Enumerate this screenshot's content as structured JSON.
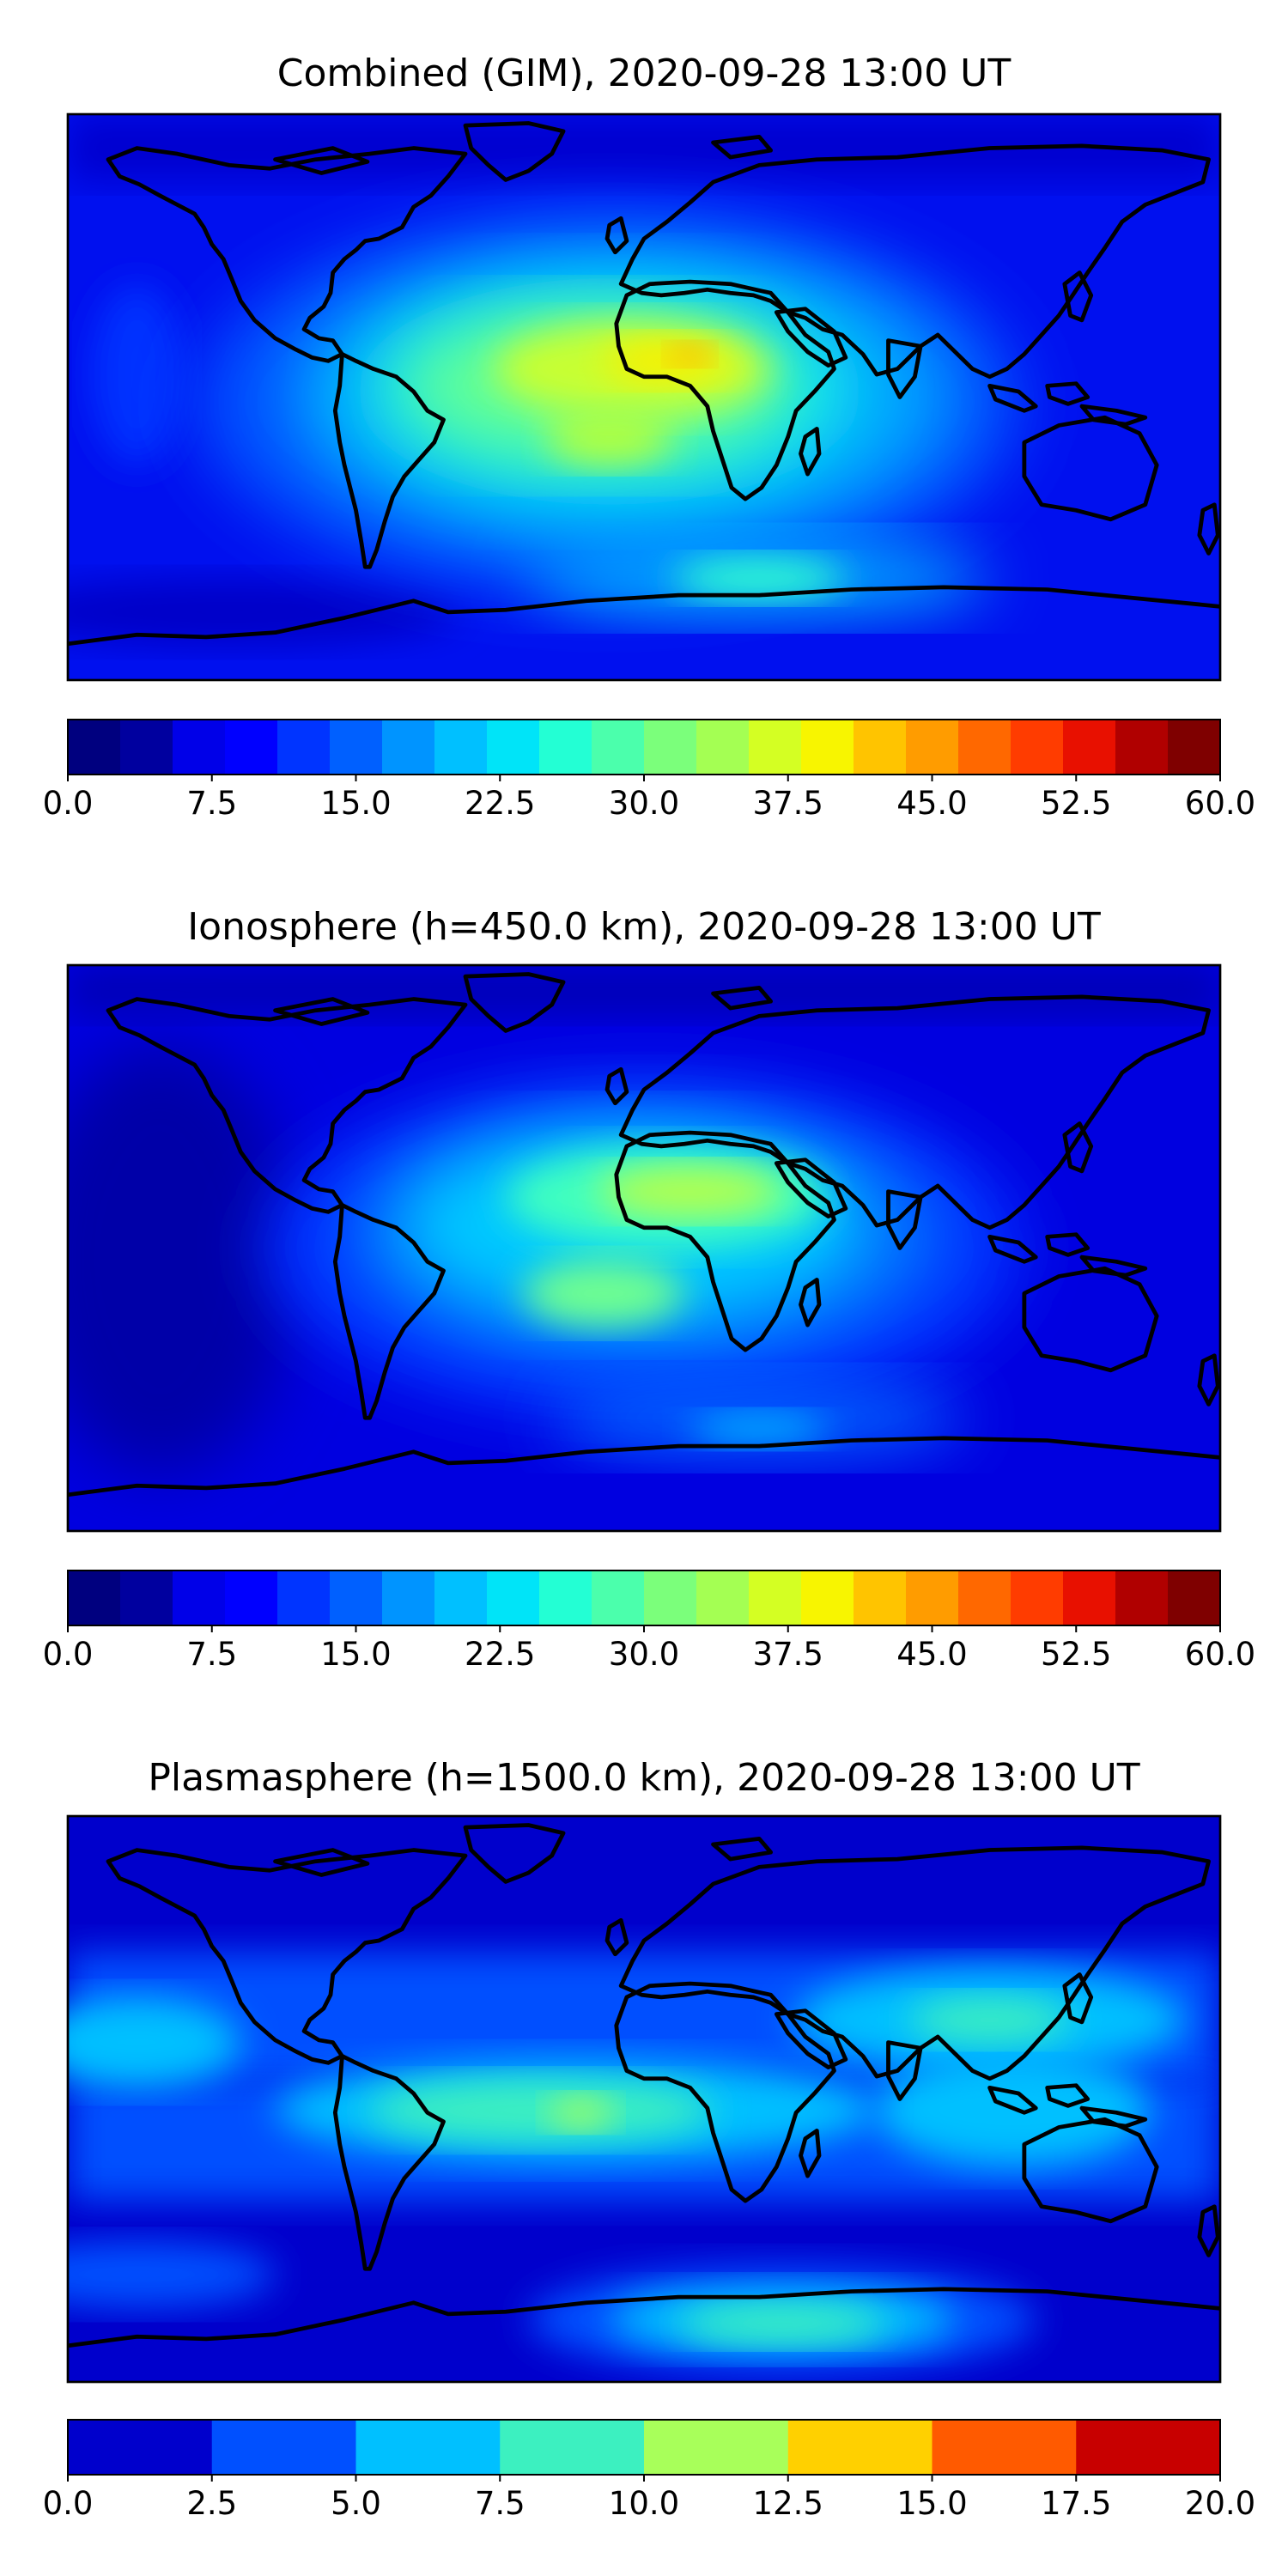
{
  "panels": [
    {
      "id": "combined",
      "title": "Combined (GIM), 2020-09-28 13:00 UT",
      "colorbar": {
        "vmin": 0,
        "vmax": 60,
        "colors": [
          "#00007f",
          "#00009f",
          "#0000e8",
          "#0000ff",
          "#0034ff",
          "#0060ff",
          "#0094ff",
          "#00c0ff",
          "#00e4f8",
          "#23ffd4",
          "#4bffac",
          "#7bff7b",
          "#a4ff53",
          "#d4ff23",
          "#f8f500",
          "#ffc400",
          "#ff9c00",
          "#ff6800",
          "#ff3c00",
          "#e81000",
          "#b00000",
          "#7f0000"
        ],
        "tick_labels": [
          "0.0",
          "7.5",
          "15.0",
          "22.5",
          "30.0",
          "37.5",
          "45.0",
          "52.5",
          "60.0"
        ]
      }
    },
    {
      "id": "ionosphere",
      "title": "Ionosphere  (h=450.0 km), 2020-09-28 13:00 UT",
      "colorbar": {
        "vmin": 0,
        "vmax": 60,
        "colors": [
          "#00007f",
          "#00009f",
          "#0000e8",
          "#0000ff",
          "#0034ff",
          "#0060ff",
          "#0094ff",
          "#00c0ff",
          "#00e4f8",
          "#23ffd4",
          "#4bffac",
          "#7bff7b",
          "#a4ff53",
          "#d4ff23",
          "#f8f500",
          "#ffc400",
          "#ff9c00",
          "#ff6800",
          "#ff3c00",
          "#e81000",
          "#b00000",
          "#7f0000"
        ],
        "tick_labels": [
          "0.0",
          "7.5",
          "15.0",
          "22.5",
          "30.0",
          "37.5",
          "45.0",
          "52.5",
          "60.0"
        ]
      }
    },
    {
      "id": "plasmasphere",
      "title": "Plasmasphere (h=1500.0 km), 2020-09-28 13:00 UT",
      "colorbar": {
        "vmin": 0,
        "vmax": 20,
        "colors": [
          "#0000cc",
          "#0050ff",
          "#00c0ff",
          "#3cf0c0",
          "#a8ff5a",
          "#ffd000",
          "#ff5a00",
          "#c80000"
        ],
        "tick_labels": [
          "0.0",
          "2.5",
          "5.0",
          "7.5",
          "10.0",
          "12.5",
          "15.0",
          "17.5",
          "20.0"
        ]
      }
    }
  ]
}
